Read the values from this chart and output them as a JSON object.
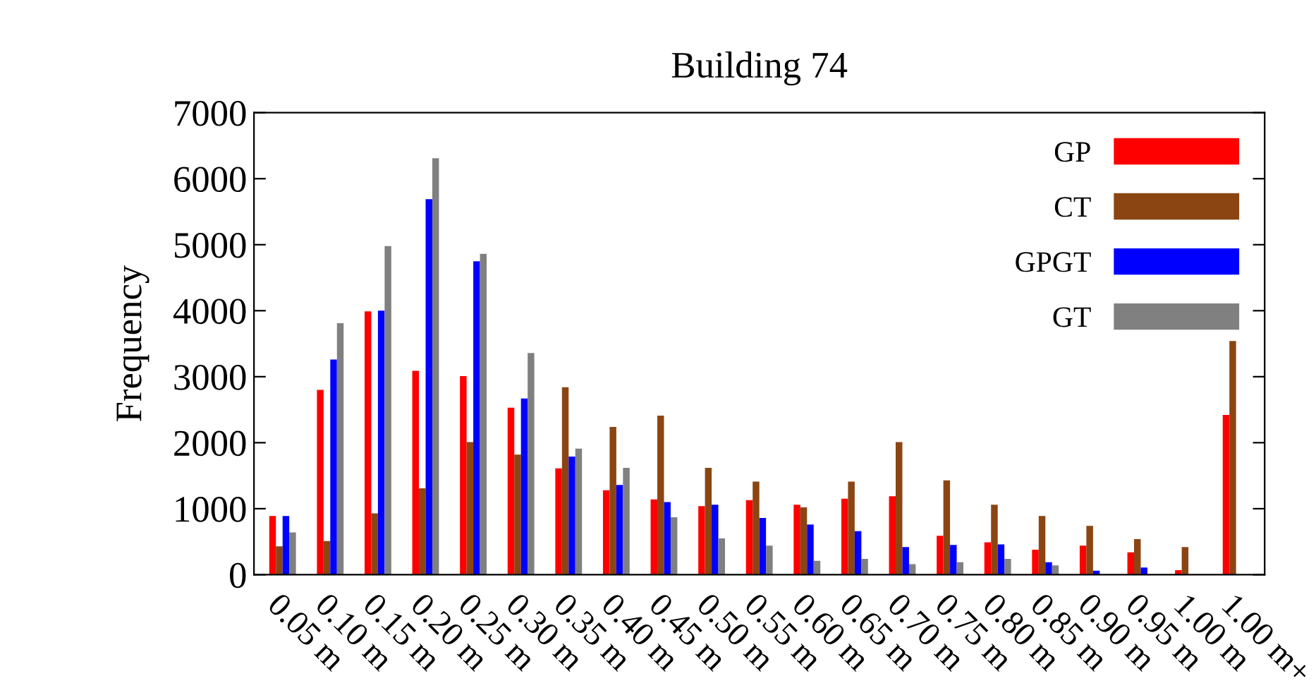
{
  "chart_data": {
    "type": "bar",
    "title": "Building 74",
    "ylabel": "Frequency",
    "categories": [
      "0.05 m",
      "0.10 m",
      "0.15 m",
      "0.20 m",
      "0.25 m",
      "0.30 m",
      "0.35 m",
      "0.40 m",
      "0.45 m",
      "0.50 m",
      "0.55 m",
      "0.60 m",
      "0.65 m",
      "0.70 m",
      "0.75 m",
      "0.80 m",
      "0.85 m",
      "0.90 m",
      "0.95 m",
      "1.00 m",
      "1.00 m+"
    ],
    "series": [
      {
        "name": "GP",
        "color": "#ff0000",
        "values": [
          890,
          2800,
          3990,
          3090,
          3010,
          2530,
          1610,
          1280,
          1140,
          1040,
          1130,
          1060,
          1150,
          1190,
          590,
          490,
          380,
          440,
          340,
          70,
          2420
        ]
      },
      {
        "name": "CT",
        "color": "#8b4513",
        "values": [
          430,
          510,
          930,
          1310,
          2010,
          1820,
          2840,
          2240,
          2410,
          1620,
          1410,
          1020,
          1410,
          2010,
          1430,
          1060,
          890,
          740,
          540,
          420,
          3540
        ]
      },
      {
        "name": "GPGT",
        "color": "#0000ff",
        "values": [
          890,
          3260,
          4000,
          5690,
          4750,
          2670,
          1790,
          1360,
          1100,
          1060,
          860,
          760,
          660,
          420,
          450,
          460,
          190,
          60,
          110,
          null,
          0
        ]
      },
      {
        "name": "GT",
        "color": "#808080",
        "values": [
          640,
          3810,
          4980,
          6310,
          4860,
          3360,
          1910,
          1620,
          870,
          550,
          440,
          210,
          240,
          160,
          190,
          240,
          140,
          0,
          0,
          0,
          0
        ]
      }
    ],
    "ylim": [
      0,
      7000
    ],
    "yticks": [
      0,
      1000,
      2000,
      3000,
      4000,
      5000,
      6000,
      7000
    ],
    "grid": false,
    "legend": "top right"
  }
}
